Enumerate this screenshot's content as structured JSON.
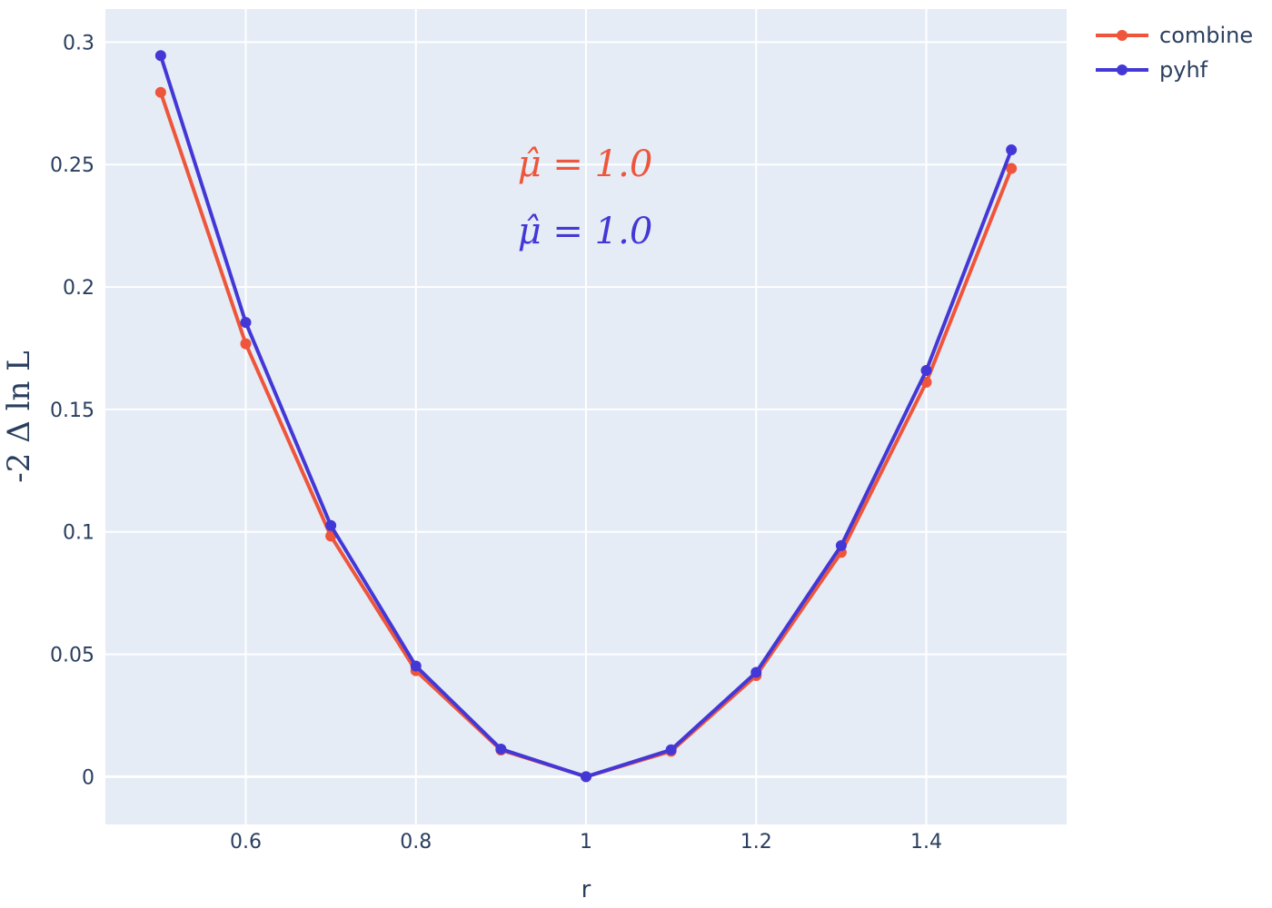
{
  "chart_data": {
    "type": "line",
    "xlabel": "r",
    "ylabel": "-2 Δ ln L",
    "xlim": [
      0.435,
      1.565
    ],
    "ylim": [
      -0.0195,
      0.3135
    ],
    "grid": true,
    "legend_position": "top-right",
    "x_ticks": [
      0.6,
      0.8,
      1,
      1.2,
      1.4
    ],
    "x_tick_labels": [
      "0.6",
      "0.8",
      "1",
      "1.2",
      "1.4"
    ],
    "y_ticks": [
      0,
      0.05,
      0.1,
      0.15,
      0.2,
      0.25,
      0.3
    ],
    "y_tick_labels": [
      "0",
      "0.05",
      "0.1",
      "0.15",
      "0.2",
      "0.25",
      "0.3"
    ],
    "x": [
      0.5,
      0.6,
      0.7,
      0.8,
      0.9,
      1.0,
      1.1,
      1.2,
      1.3,
      1.4,
      1.5
    ],
    "series": [
      {
        "name": "combine",
        "color": "#ef553b",
        "values": [
          0.2795,
          0.1768,
          0.0983,
          0.0433,
          0.0109,
          0.0,
          0.0104,
          0.0413,
          0.0916,
          0.1611,
          0.2484
        ]
      },
      {
        "name": "pyhf",
        "color": "#4338d6",
        "values": [
          0.2945,
          0.1855,
          0.1026,
          0.0452,
          0.0113,
          0.0,
          0.011,
          0.0426,
          0.0944,
          0.1659,
          0.256
        ]
      }
    ],
    "annotations": [
      {
        "text": "μ̂ = 1.0",
        "color": "#ef553b"
      },
      {
        "text": "μ̂ = 1.0",
        "color": "#4338d6"
      }
    ]
  }
}
